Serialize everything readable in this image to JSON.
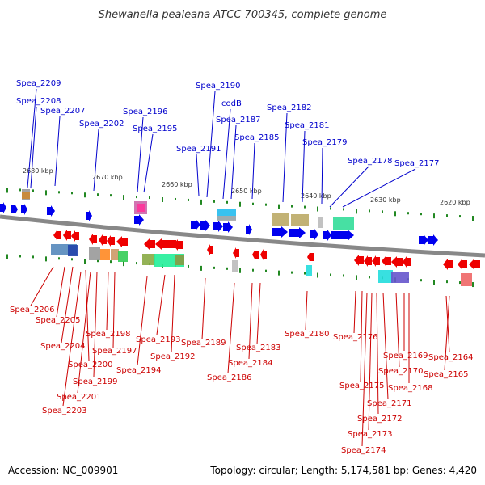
{
  "title": "Shewanella pealeana ATCC 700345, complete genome",
  "footer": {
    "accession": "Accession: NC_009901",
    "summary": "Topology: circular; Length: 5,174,581 bp; Genes: 4,420"
  },
  "colors": {
    "backbone": "#888888",
    "forward_gene": "#0000ee",
    "reverse_gene": "#ee0000",
    "label_forward": "#0000cc",
    "label_reverse": "#cc0000",
    "tick": "#228822"
  },
  "scale_ticks": [
    "2680 kbp",
    "2670 kbp",
    "2660 kbp",
    "2650 kbp",
    "2640 kbp",
    "2630 kbp",
    "2620 kbp"
  ],
  "genes_forward": [
    "Spea_2209",
    "Spea_2208",
    "Spea_2207",
    "Spea_2202",
    "Spea_2196",
    "Spea_2195",
    "Spea_2191",
    "Spea_2190",
    "codB",
    "Spea_2187",
    "Spea_2185",
    "Spea_2182",
    "Spea_2181",
    "Spea_2179",
    "Spea_2178",
    "Spea_2177"
  ],
  "genes_reverse": [
    "Spea_2206",
    "Spea_2205",
    "Spea_2204",
    "Spea_2200",
    "Spea_2198",
    "Spea_2197",
    "Spea_2199",
    "Spea_2201",
    "Spea_2203",
    "Spea_2194",
    "Spea_2193",
    "Spea_2192",
    "Spea_2189",
    "Spea_2186",
    "Spea_2184",
    "Spea_2183",
    "Spea_2180",
    "Spea_2176",
    "Spea_2175",
    "Spea_2174",
    "Spea_2173",
    "Spea_2172",
    "Spea_2171",
    "Spea_2170",
    "Spea_2169",
    "Spea_2168",
    "Spea_2165",
    "Spea_2164"
  ]
}
